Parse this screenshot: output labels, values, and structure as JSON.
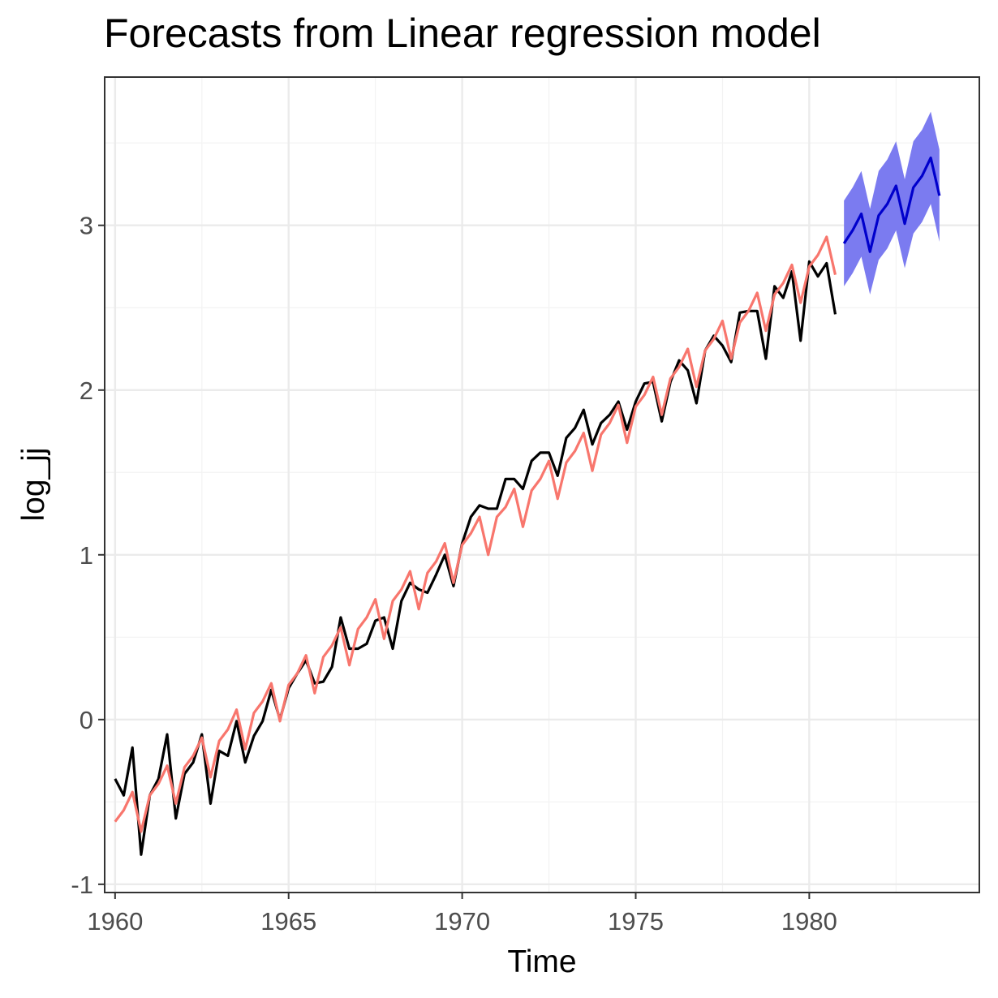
{
  "chart_data": {
    "type": "line",
    "title": "Forecasts from Linear regression model",
    "xlabel": "Time",
    "ylabel": "log_jj",
    "xlim": [
      1959.7,
      1984.9
    ],
    "ylim": [
      -1.05,
      3.9
    ],
    "x_ticks": [
      "1960",
      "1965",
      "1970",
      "1975",
      "1980"
    ],
    "y_ticks": [
      "-1",
      "0",
      "1",
      "2",
      "3"
    ],
    "grid": true,
    "legend": "none",
    "colors": {
      "actual": "#000000",
      "fitted": "#F8766D",
      "forecast": "#0000CC",
      "interval": "#7B7BF0",
      "grid_major": "#EBEBEB",
      "grid_minor": "#F3F3F3",
      "panel_border": "#333333"
    },
    "x_start": 1960.0,
    "x_step": 0.25,
    "series": [
      {
        "role": "actual",
        "values": [
          -0.36,
          -0.46,
          -0.17,
          -0.82,
          -0.46,
          -0.36,
          -0.09,
          -0.6,
          -0.33,
          -0.26,
          -0.09,
          -0.51,
          -0.19,
          -0.22,
          -0.01,
          -0.26,
          -0.1,
          -0.01,
          0.18,
          0.0,
          0.19,
          0.28,
          0.36,
          0.22,
          0.23,
          0.32,
          0.62,
          0.43,
          0.43,
          0.46,
          0.6,
          0.62,
          0.43,
          0.72,
          0.83,
          0.79,
          0.77,
          0.88,
          1.0,
          0.81,
          1.07,
          1.23,
          1.3,
          1.28,
          1.28,
          1.46,
          1.46,
          1.4,
          1.57,
          1.62,
          1.62,
          1.48,
          1.71,
          1.77,
          1.88,
          1.67,
          1.8,
          1.85,
          1.93,
          1.76,
          1.93,
          2.04,
          2.05,
          1.81,
          2.05,
          2.18,
          2.12,
          1.92,
          2.24,
          2.33,
          2.27,
          2.17,
          2.47,
          2.48,
          2.48,
          2.19,
          2.63,
          2.56,
          2.72,
          2.3,
          2.78,
          2.69,
          2.77,
          2.46
        ]
      },
      {
        "role": "fitted",
        "values": [
          -0.62,
          -0.55,
          -0.44,
          -0.68,
          -0.46,
          -0.39,
          -0.28,
          -0.51,
          -0.29,
          -0.22,
          -0.11,
          -0.35,
          -0.13,
          -0.06,
          0.06,
          -0.18,
          0.04,
          0.11,
          0.22,
          -0.01,
          0.21,
          0.28,
          0.39,
          0.16,
          0.38,
          0.45,
          0.56,
          0.33,
          0.55,
          0.62,
          0.73,
          0.49,
          0.72,
          0.79,
          0.9,
          0.67,
          0.89,
          0.96,
          1.07,
          0.83,
          1.06,
          1.13,
          1.23,
          1.0,
          1.23,
          1.29,
          1.4,
          1.17,
          1.39,
          1.46,
          1.57,
          1.34,
          1.56,
          1.63,
          1.74,
          1.51,
          1.73,
          1.8,
          1.91,
          1.68,
          1.9,
          1.97,
          2.08,
          1.85,
          2.07,
          2.14,
          2.25,
          2.02,
          2.24,
          2.31,
          2.42,
          2.19,
          2.41,
          2.48,
          2.59,
          2.36,
          2.58,
          2.65,
          2.76,
          2.53,
          2.75,
          2.82,
          2.93,
          2.7
        ]
      },
      {
        "role": "forecast",
        "x_start": 1981.0,
        "values": [
          2.89,
          2.97,
          3.07,
          2.84,
          3.06,
          3.13,
          3.24,
          3.01,
          3.23,
          3.3,
          3.41,
          3.18
        ],
        "lower": [
          2.63,
          2.71,
          2.81,
          2.58,
          2.79,
          2.86,
          2.97,
          2.74,
          2.95,
          3.02,
          3.13,
          2.9
        ],
        "upper": [
          3.15,
          3.23,
          3.33,
          3.1,
          3.33,
          3.4,
          3.51,
          3.28,
          3.51,
          3.58,
          3.69,
          3.46
        ]
      }
    ]
  }
}
